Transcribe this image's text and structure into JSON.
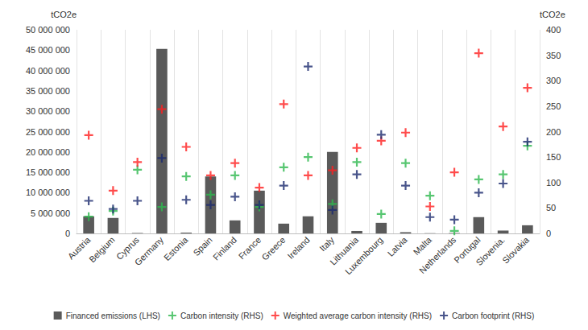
{
  "chart_data": {
    "type": "bar",
    "categories": [
      "Austria",
      "Belgium",
      "Cyprus",
      "Germany",
      "Estonia",
      "Spain",
      "Finland",
      "France",
      "Greece",
      "Ireland",
      "Italy",
      "Lithuania",
      "Luxembourg",
      "Latvia",
      "Malta",
      "Netherlands",
      "Portugal",
      "Slovenia.",
      "Slovakia"
    ],
    "y_label": "tCO2e",
    "y2_label": "tCO2e",
    "ylim": [
      0,
      50000000
    ],
    "yticks": [
      0,
      {
        "value": 5000000,
        "label": "5 000 000"
      },
      {
        "value": 10000000,
        "label": "10 000 000"
      },
      {
        "value": 15000000,
        "label": "15 000 000"
      },
      {
        "value": 20000000,
        "label": "20 000 000"
      },
      {
        "value": 25000000,
        "label": "25 000 000"
      },
      {
        "value": 30000000,
        "label": "30 000 000"
      },
      {
        "value": 35000000,
        "label": "35 000 000"
      },
      {
        "value": 40000000,
        "label": "40 000 000"
      },
      {
        "value": 45000000,
        "label": "45 000 000"
      },
      {
        "value": 50000000,
        "label": "50 000 000"
      }
    ],
    "y2lim": [
      0,
      400
    ],
    "y2ticks": [
      0,
      50,
      100,
      150,
      200,
      250,
      300,
      350,
      400
    ],
    "grid": true,
    "legend": "bottom",
    "series": [
      {
        "name": "Financed emissions (LHS)",
        "type": "bar",
        "color": "#5a5a5a",
        "values": [
          4200000,
          3800000,
          100000,
          45300000,
          200000,
          14000000,
          3200000,
          10500000,
          2400000,
          4200000,
          20000000,
          600000,
          2600000,
          300000,
          50000,
          100000,
          4000000,
          700000,
          2000000
        ]
      },
      {
        "name": "Carbon intensity (RHS)",
        "type": "scatter",
        "axis": "y2",
        "marker": "plus",
        "color": "#2db84d",
        "values": [
          33,
          44,
          125,
          52,
          112,
          76,
          114,
          52,
          130,
          150,
          58,
          140,
          38,
          138,
          74,
          5,
          106,
          116,
          172
        ]
      },
      {
        "name": "Weighted average carbon intensity (RHS)",
        "type": "scatter",
        "axis": "y2",
        "marker": "plus",
        "color": "#ff1f1f",
        "values": [
          193,
          84,
          140,
          244,
          170,
          114,
          138,
          90,
          254,
          114,
          124,
          168,
          182,
          198,
          53,
          120,
          354,
          210,
          286
        ]
      },
      {
        "name": "Carbon footprint (RHS)",
        "type": "scatter",
        "axis": "y2",
        "marker": "plus",
        "color": "#1c2a6e",
        "values": [
          64,
          48,
          64,
          148,
          66,
          56,
          72,
          56,
          94,
          328,
          46,
          116,
          194,
          94,
          32,
          27,
          80,
          98,
          180
        ]
      }
    ]
  }
}
